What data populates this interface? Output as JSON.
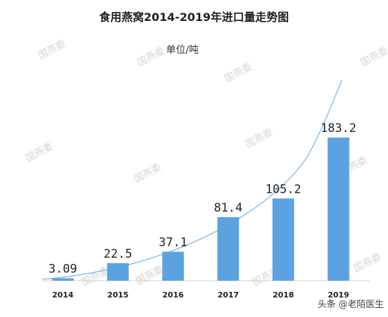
{
  "chart_data": {
    "type": "bar",
    "title": "食用燕窝2014-2019年进口量走势图",
    "unit_label": "单位/吨",
    "categories": [
      "2014",
      "2015",
      "2016",
      "2017",
      "2018",
      "2019"
    ],
    "values": [
      3.09,
      22.5,
      37.1,
      81.4,
      105.2,
      183.2
    ],
    "value_labels": [
      "3.09",
      "22.5",
      "37.1",
      "81.4",
      "105.2",
      "183.2"
    ],
    "ylim": [
      0,
      190
    ],
    "bar_color": "#5aa2e0",
    "trend_line_color": "#7fb6e6",
    "grid": false,
    "legend": "none"
  },
  "watermark_text": "国燕委",
  "credit_text": "头条 @老陌医生"
}
